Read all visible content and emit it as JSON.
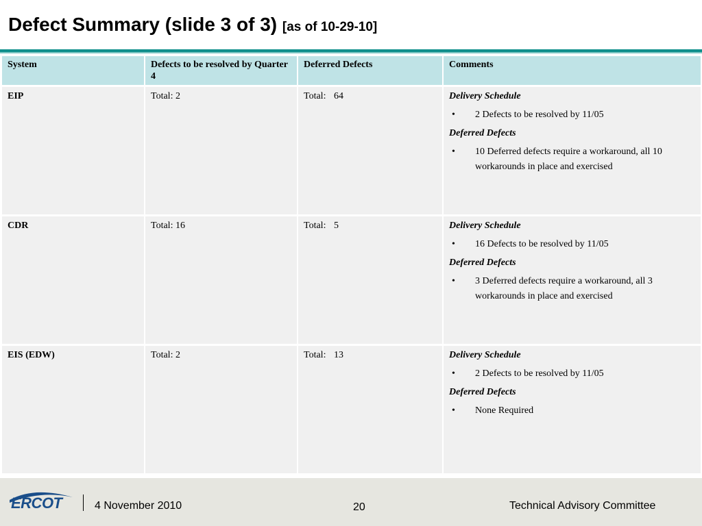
{
  "slide": {
    "title": "Defect Summary (slide 3 of 3)",
    "subtitle": "[as of 10-29-10]"
  },
  "table": {
    "headers": [
      "System",
      "Defects to be resolved by Quarter 4",
      "Deferred Defects",
      "Comments"
    ],
    "rows": [
      {
        "system": "EIP",
        "q4_label": "Total:",
        "q4_value": "2",
        "deferred_label": "Total:",
        "deferred_value": "64",
        "comments": {
          "delivery_heading": "Delivery Schedule",
          "delivery_item": "2 Defects to be resolved by 11/05",
          "deferred_heading": "Deferred Defects",
          "deferred_item": "10 Deferred defects require a workaround, all 10 workarounds in place and exercised"
        }
      },
      {
        "system": "CDR",
        "q4_label": "Total:",
        "q4_value": "16",
        "deferred_label": "Total:",
        "deferred_value": "5",
        "comments": {
          "delivery_heading": "Delivery Schedule",
          "delivery_item": "16 Defects to be resolved by 11/05",
          "deferred_heading": "Deferred Defects",
          "deferred_item": "3 Deferred defects require a workaround, all  3 workarounds in place and exercised"
        }
      },
      {
        "system": "EIS (EDW)",
        "q4_label": "Total:",
        "q4_value": "2",
        "deferred_label": "Total:",
        "deferred_value": "13",
        "comments": {
          "delivery_heading": "Delivery Schedule",
          "delivery_item": "2 Defects to be resolved by 11/05",
          "deferred_heading": "Deferred Defects",
          "deferred_item": "None Required"
        }
      }
    ]
  },
  "footer": {
    "logo_text": "ERCOT",
    "date": "4 November 2010",
    "page_number": "20",
    "organization": "Technical Advisory Committee"
  },
  "colors": {
    "header_fill": "#bfe3e6",
    "cell_fill": "#f0f0f0",
    "rule": "#0f8f8c",
    "footer_fill": "#e6e6e0",
    "logo_blue": "#1a4e8a"
  }
}
